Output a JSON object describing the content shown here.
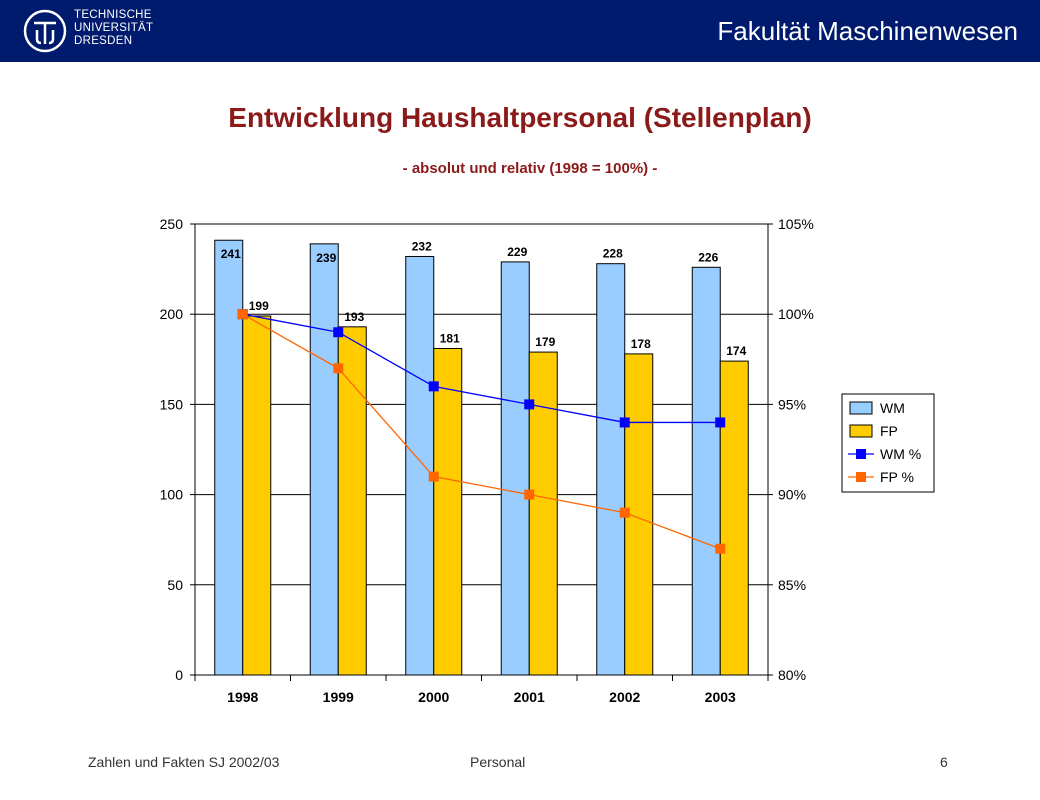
{
  "header": {
    "university_lines": [
      "TECHNISCHE",
      "UNIVERSITÄT",
      "DRESDEN"
    ],
    "faculty": "Fakultät Maschinenwesen",
    "logo_icon": "tu-dresden-logo-icon",
    "background_color": "#001a6e"
  },
  "slide": {
    "title": "Entwicklung Haushaltpersonal (Stellenplan)",
    "subtitle": "- absolut und relativ (1998 = 100%) -"
  },
  "chart_data": {
    "type": "bar",
    "categories": [
      "1998",
      "1999",
      "2000",
      "2001",
      "2002",
      "2003"
    ],
    "series": [
      {
        "name": "WM",
        "type": "bar",
        "axis": "left",
        "values": [
          241,
          239,
          232,
          229,
          228,
          226
        ],
        "labels": [
          "241",
          "239",
          "232",
          "229",
          "228",
          "226"
        ],
        "color": "#99ccff"
      },
      {
        "name": "FP",
        "type": "bar",
        "axis": "left",
        "values": [
          199,
          193,
          181,
          179,
          178,
          174
        ],
        "labels": [
          "199",
          "193",
          "181",
          "179",
          "178",
          "174"
        ],
        "color": "#ffcc00"
      },
      {
        "name": "WM %",
        "type": "line",
        "axis": "right",
        "values": [
          100,
          99,
          96,
          95,
          94,
          94
        ],
        "color": "#0000ff"
      },
      {
        "name": "FP  %",
        "type": "line",
        "axis": "right",
        "values": [
          100,
          97,
          91,
          90,
          89,
          87
        ],
        "color": "#ff6600"
      }
    ],
    "ylim": [
      0,
      250
    ],
    "yticks": [
      "0",
      "50",
      "100",
      "150",
      "200",
      "250"
    ],
    "y2lim": [
      80,
      105
    ],
    "y2ticks": [
      "80%",
      "85%",
      "90%",
      "95%",
      "100%",
      "105%"
    ],
    "grid": true,
    "legend": "right",
    "xlabel": "",
    "ylabel": ""
  },
  "footer": {
    "left": "Zahlen und Fakten SJ 2002/03",
    "center": "Personal",
    "page": "6"
  }
}
